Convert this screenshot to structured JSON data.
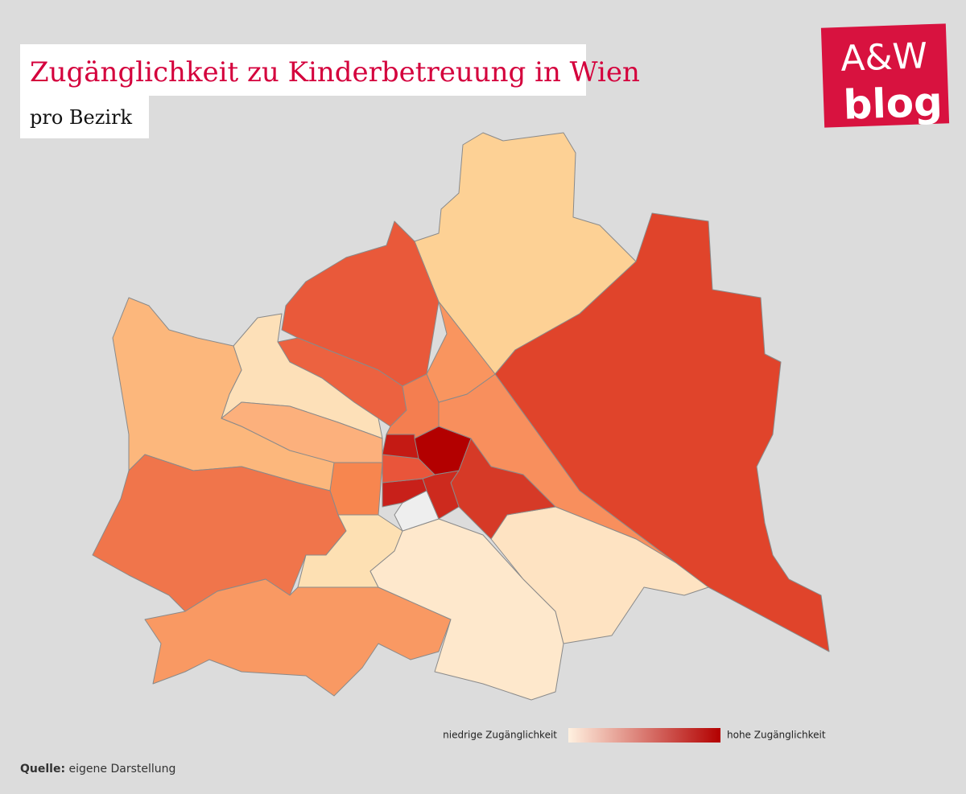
{
  "header": {
    "title": "Zugänglichkeit zu Kinderbetreuung in Wien",
    "subtitle": "pro Bezirk"
  },
  "logo": {
    "line1": "A&W",
    "line2": "blog"
  },
  "legend": {
    "low": "niedrige Zugänglichkeit",
    "high": "hohe Zugänglichkeit"
  },
  "source": {
    "label": "Quelle:",
    "text": "eigene Darstellung"
  }
}
